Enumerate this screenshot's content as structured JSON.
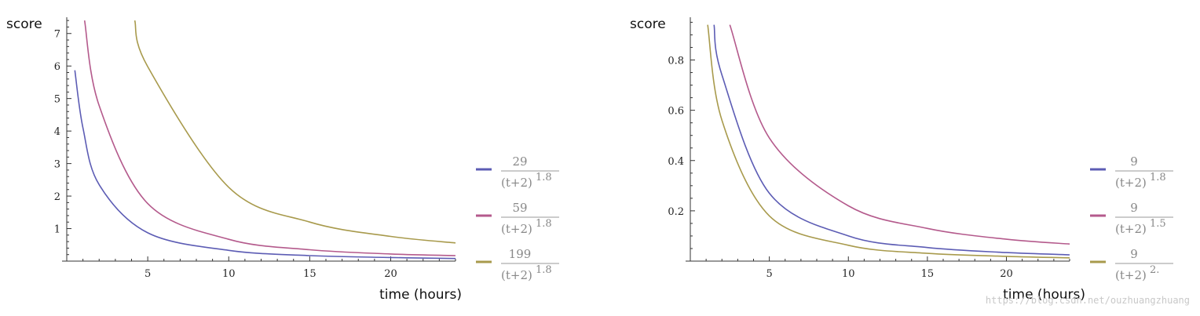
{
  "chart_data": [
    {
      "type": "line",
      "title": "",
      "xlabel": "time (hours)",
      "ylabel": "score",
      "xlim": [
        0,
        24
      ],
      "ylim": [
        0,
        7.5
      ],
      "x_ticks": [
        5,
        10,
        15,
        20
      ],
      "y_ticks": [
        1,
        2,
        3,
        4,
        5,
        6,
        7
      ],
      "y_tick_labels": [
        "1",
        "2",
        "3",
        "4",
        "5",
        "6",
        "7"
      ],
      "legend": "right",
      "series": [
        {
          "name": "29/(t+2)^1.8",
          "numerator": "29",
          "denominator": "(t+2)",
          "exponent": "1.8",
          "color": "#5c5cb4",
          "points": [
            [
              0.5,
              5.87
            ],
            [
              1,
              4.1
            ],
            [
              2,
              2.35
            ],
            [
              5,
              0.87
            ],
            [
              10,
              0.33
            ],
            [
              15,
              0.17
            ],
            [
              20,
              0.11
            ],
            [
              24,
              0.08
            ]
          ]
        },
        {
          "name": "59/(t+2)^1.8",
          "numerator": "59",
          "denominator": "(t+2)",
          "exponent": "1.8",
          "color": "#b45a8c",
          "points": [
            [
              1.1,
              7.4
            ],
            [
              2,
              4.78
            ],
            [
              5,
              1.77
            ],
            [
              10,
              0.67
            ],
            [
              15,
              0.35
            ],
            [
              20,
              0.22
            ],
            [
              24,
              0.17
            ]
          ]
        },
        {
          "name": "199/(t+2)^1.8",
          "numerator": "199",
          "denominator": "(t+2)",
          "exponent": "1.8",
          "color": "#a89a4c",
          "points": [
            [
              4.2,
              7.4
            ],
            [
              5,
              5.98
            ],
            [
              10,
              2.27
            ],
            [
              15,
              1.2
            ],
            [
              20,
              0.76
            ],
            [
              24,
              0.56
            ]
          ]
        }
      ]
    },
    {
      "type": "line",
      "title": "",
      "xlabel": "time (hours)",
      "ylabel": "score",
      "xlim": [
        0,
        24
      ],
      "ylim": [
        0,
        0.97
      ],
      "x_ticks": [
        5,
        10,
        15,
        20
      ],
      "y_ticks": [
        0.2,
        0.4,
        0.6,
        0.8
      ],
      "y_tick_labels": [
        "0.2",
        "0.4",
        "0.6",
        "0.8"
      ],
      "legend": "right",
      "series": [
        {
          "name": "9/(t+2)^1.8",
          "numerator": "9",
          "denominator": "(t+2)",
          "exponent": "1.8",
          "color": "#5c5cb4",
          "points": [
            [
              1.5,
              0.94
            ],
            [
              2,
              0.74
            ],
            [
              5,
              0.27
            ],
            [
              10,
              0.1
            ],
            [
              15,
              0.054
            ],
            [
              20,
              0.034
            ],
            [
              24,
              0.025
            ]
          ]
        },
        {
          "name": "9/(t+2)^1.5",
          "numerator": "9",
          "denominator": "(t+2)",
          "exponent": "1.5",
          "color": "#b45a8c",
          "points": [
            [
              2.5,
              0.94
            ],
            [
              5,
              0.49
            ],
            [
              10,
              0.22
            ],
            [
              15,
              0.13
            ],
            [
              20,
              0.087
            ],
            [
              24,
              0.068
            ]
          ]
        },
        {
          "name": "9/(t+2)^2.",
          "numerator": "9",
          "denominator": "(t+2)",
          "exponent": "2.",
          "color": "#a89a4c",
          "points": [
            [
              1.1,
              0.94
            ],
            [
              2,
              0.56
            ],
            [
              5,
              0.18
            ],
            [
              10,
              0.063
            ],
            [
              15,
              0.031
            ],
            [
              20,
              0.019
            ],
            [
              24,
              0.013
            ]
          ]
        }
      ]
    }
  ],
  "watermark": "https://blog.csdn.net/ouzhuangzhuang"
}
